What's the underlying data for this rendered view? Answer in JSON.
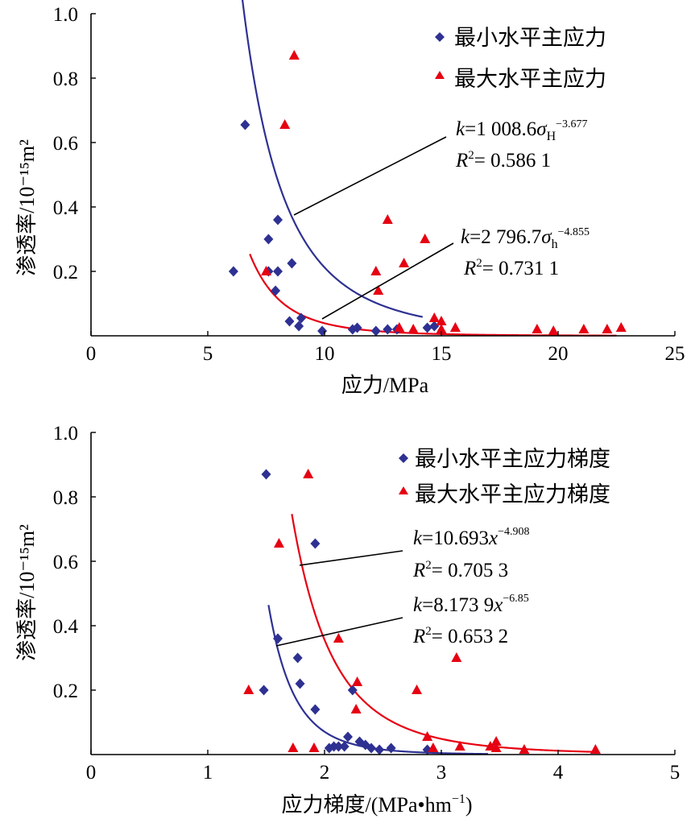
{
  "chart_data": [
    {
      "type": "scatter",
      "xlabel": "应力/MPa",
      "ylabel": "渗透率/10⁻¹⁵m²",
      "xlim": [
        0,
        25
      ],
      "ylim": [
        0,
        1.0
      ],
      "xticks": [
        "0",
        "5",
        "10",
        "15",
        "20",
        "25"
      ],
      "yticks": [
        "0.2",
        "0.4",
        "0.6",
        "0.8",
        "1.0"
      ],
      "legend_position": "top-right",
      "series": [
        {
          "name": "最小水平主应力",
          "marker": "diamond",
          "color": "#2e3192",
          "points": [
            [
              6.1,
              0.2
            ],
            [
              6.6,
              0.655
            ],
            [
              7.6,
              0.3
            ],
            [
              7.6,
              0.2
            ],
            [
              8.0,
              0.36
            ],
            [
              8.0,
              0.2
            ],
            [
              7.9,
              0.14
            ],
            [
              8.6,
              0.225
            ],
            [
              8.5,
              0.045
            ],
            [
              8.9,
              0.03
            ],
            [
              9.0,
              0.055
            ],
            [
              9.9,
              0.015
            ],
            [
              11.2,
              0.02
            ],
            [
              11.4,
              0.025
            ],
            [
              12.2,
              0.015
            ],
            [
              12.7,
              0.02
            ],
            [
              13.1,
              0.02
            ],
            [
              14.4,
              0.025
            ],
            [
              14.7,
              0.03
            ]
          ],
          "fit": {
            "a": 1008.6,
            "b": -3.677,
            "x_range": [
              5.3,
              14.2
            ]
          }
        },
        {
          "name": "最大水平主应力",
          "marker": "triangle",
          "color": "#e60012",
          "points": [
            [
              7.5,
              0.2
            ],
            [
              8.3,
              0.655
            ],
            [
              8.7,
              0.87
            ],
            [
              12.2,
              0.2
            ],
            [
              12.3,
              0.14
            ],
            [
              12.7,
              0.36
            ],
            [
              13.4,
              0.225
            ],
            [
              14.3,
              0.3
            ],
            [
              14.7,
              0.055
            ],
            [
              15.0,
              0.045
            ],
            [
              15.0,
              0.02
            ],
            [
              15.6,
              0.025
            ],
            [
              13.8,
              0.02
            ],
            [
              13.2,
              0.025
            ],
            [
              19.1,
              0.02
            ],
            [
              19.8,
              0.015
            ],
            [
              21.1,
              0.02
            ],
            [
              22.1,
              0.02
            ],
            [
              22.7,
              0.025
            ]
          ],
          "fit": {
            "a": 2796.7,
            "b": -4.855,
            "x_range": [
              6.8,
              22.5
            ]
          }
        }
      ],
      "annotations": [
        {
          "label": "k=1 008.6σH−3.677",
          "r2": "R2= 0.586 1"
        },
        {
          "label": "k=2 796.7σh−4.855",
          "r2": "R2= 0.731 1"
        }
      ]
    },
    {
      "type": "scatter",
      "xlabel": "应力梯度/(MPa•hm−1)",
      "ylabel": "渗透率/10⁻¹⁵m²",
      "xlim": [
        0,
        5
      ],
      "ylim": [
        0,
        1.0
      ],
      "xticks": [
        "0",
        "1",
        "2",
        "3",
        "4",
        "5"
      ],
      "yticks": [
        "0.2",
        "0.4",
        "0.6",
        "0.8",
        "1.0"
      ],
      "legend_position": "top-right",
      "series": [
        {
          "name": "最小水平主应力梯度",
          "marker": "diamond",
          "color": "#2e3192",
          "points": [
            [
              1.48,
              0.2
            ],
            [
              1.5,
              0.87
            ],
            [
              1.6,
              0.36
            ],
            [
              1.77,
              0.3
            ],
            [
              1.79,
              0.22
            ],
            [
              1.92,
              0.655
            ],
            [
              1.92,
              0.14
            ],
            [
              2.04,
              0.02
            ],
            [
              2.08,
              0.025
            ],
            [
              2.12,
              0.025
            ],
            [
              2.17,
              0.025
            ],
            [
              2.2,
              0.055
            ],
            [
              2.24,
              0.2
            ],
            [
              2.3,
              0.04
            ],
            [
              2.35,
              0.03
            ],
            [
              2.4,
              0.02
            ],
            [
              2.47,
              0.015
            ],
            [
              2.57,
              0.02
            ],
            [
              2.88,
              0.015
            ]
          ],
          "fit": {
            "a": 8.1739,
            "b": -6.85,
            "x_range": [
              1.52,
              3.4
            ]
          }
        },
        {
          "name": "最大水平主应力梯度",
          "marker": "triangle",
          "color": "#e60012",
          "points": [
            [
              1.35,
              0.2
            ],
            [
              1.61,
              0.655
            ],
            [
              1.86,
              0.87
            ],
            [
              1.91,
              0.02
            ],
            [
              1.73,
              0.02
            ],
            [
              2.12,
              0.36
            ],
            [
              2.28,
              0.225
            ],
            [
              2.27,
              0.14
            ],
            [
              2.79,
              0.2
            ],
            [
              2.88,
              0.055
            ],
            [
              2.93,
              0.02
            ],
            [
              3.13,
              0.3
            ],
            [
              3.16,
              0.025
            ],
            [
              3.42,
              0.025
            ],
            [
              3.47,
              0.04
            ],
            [
              3.47,
              0.02
            ],
            [
              3.71,
              0.015
            ],
            [
              4.32,
              0.015
            ]
          ],
          "fit": {
            "a": 10.693,
            "b": -4.908,
            "x_range": [
              1.72,
              4.3
            ]
          }
        }
      ],
      "annotations": [
        {
          "label": "k=10.693x−4.908",
          "r2": "R2= 0.705 3"
        },
        {
          "label": "k=8.173 9x−6.85",
          "r2": "R2= 0.653 2"
        }
      ]
    }
  ]
}
